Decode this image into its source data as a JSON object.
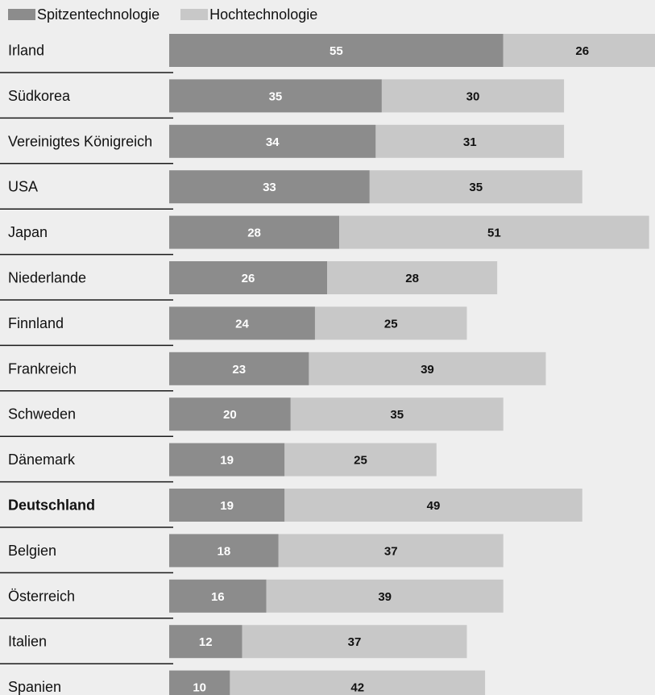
{
  "colors": {
    "spitzen": "#8c8c8c",
    "hoch": "#c8c8c8",
    "divider": "#1a1a1a",
    "label_on_dark": "#ffffff",
    "label_on_light": "#111111"
  },
  "chart_data": {
    "type": "bar",
    "orientation": "horizontal",
    "stacked": true,
    "legend_position": "top-left",
    "categories": [
      "Irland",
      "Südkorea",
      "Vereinigtes Königreich",
      "USA",
      "Japan",
      "Niederlande",
      "Finnland",
      "Frankreich",
      "Schweden",
      "Dänemark",
      "Deutschland",
      "Belgien",
      "Österreich",
      "Italien",
      "Spanien"
    ],
    "highlight_category": "Deutschland",
    "series": [
      {
        "name": "Spitzentechnologie",
        "color": "#8c8c8c",
        "values": [
          55,
          35,
          34,
          33,
          28,
          26,
          24,
          23,
          20,
          19,
          19,
          18,
          16,
          12,
          10
        ]
      },
      {
        "name": "Hochtechnologie",
        "color": "#c8c8c8",
        "values": [
          26,
          30,
          31,
          35,
          51,
          28,
          25,
          39,
          35,
          25,
          49,
          37,
          39,
          37,
          42
        ]
      }
    ]
  }
}
